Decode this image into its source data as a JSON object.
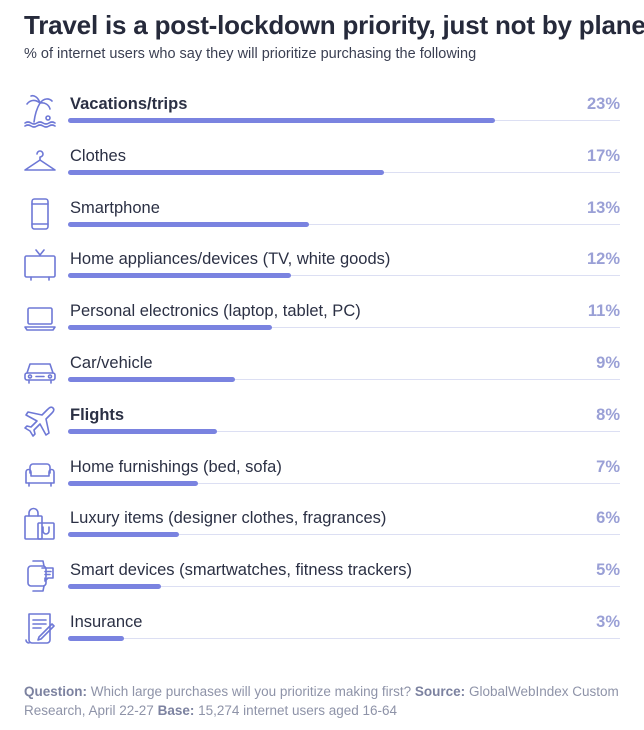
{
  "title": "Travel is a post-lockdown priority, just not by plane",
  "subtitle": "% of internet users who say they will prioritize purchasing the following",
  "colors": {
    "bar": "#7a83e0",
    "track": "#dcdff3",
    "value": "#9aa0d6",
    "icon": "#6e78d6"
  },
  "chart_data": {
    "type": "bar",
    "orientation": "horizontal",
    "unit": "%",
    "xlim": [
      0,
      23
    ],
    "categories": [
      "Vacations/trips",
      "Clothes",
      "Smartphone",
      "Home appliances/devices (TV, white goods)",
      "Personal electronics (laptop, tablet, PC)",
      "Car/vehicle",
      "Flights",
      "Home furnishings (bed, sofa)",
      "Luxury items (designer clothes, fragrances)",
      "Smart devices (smartwatches, fitness trackers)",
      "Insurance"
    ],
    "values": [
      23,
      17,
      13,
      12,
      11,
      9,
      8,
      7,
      6,
      5,
      3
    ],
    "value_labels": [
      "23%",
      "17%",
      "13%",
      "12%",
      "11%",
      "9%",
      "8%",
      "7%",
      "6%",
      "5%",
      "3%"
    ],
    "highlighted": [
      "Vacations/trips",
      "Flights"
    ],
    "icons": [
      "palm-tree-icon",
      "hanger-icon",
      "smartphone-icon",
      "tv-icon",
      "laptop-icon",
      "car-icon",
      "plane-icon",
      "sofa-icon",
      "shopping-bag-icon",
      "smartwatch-icon",
      "document-icon"
    ]
  },
  "footnote": {
    "question_label": "Question:",
    "question_text": "Which large purchases will you prioritize making first?",
    "source_label": "Source:",
    "source_text": "GlobalWebIndex Custom Research, April 22-27",
    "base_label": "Base:",
    "base_text": "15,274 internet users aged 16-64"
  }
}
